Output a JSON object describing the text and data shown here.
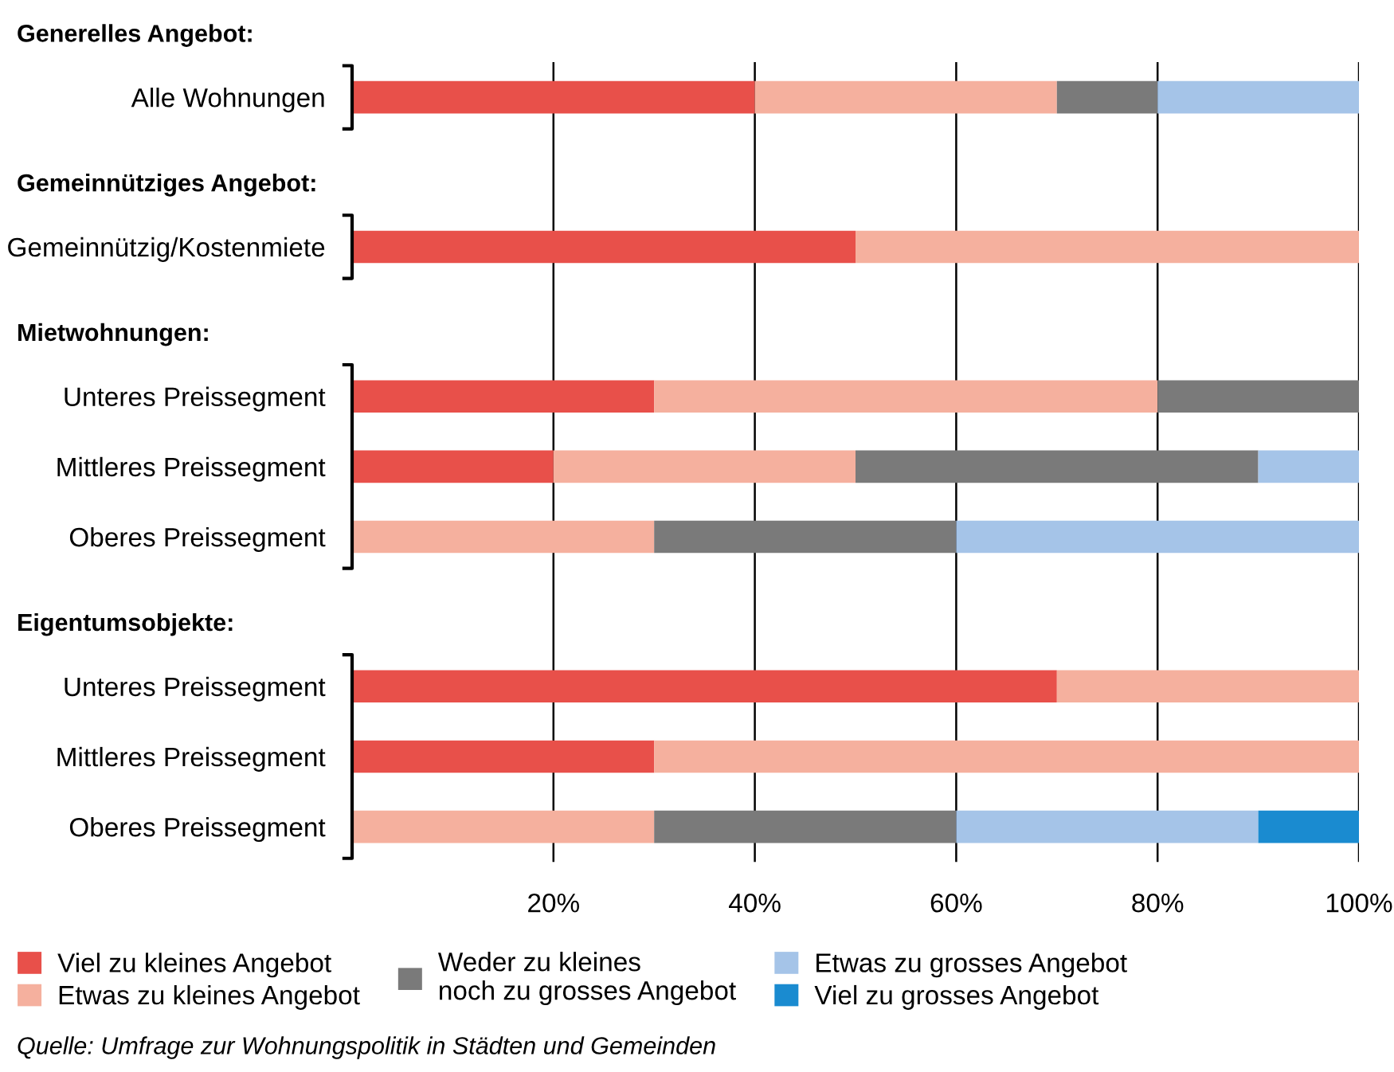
{
  "chart_data": {
    "type": "bar",
    "orientation": "horizontal",
    "stacked": true,
    "categories": [
      null,
      "Alle Wohnungen",
      null,
      "Gemeinnützig/Kostenmiete",
      null,
      "Unteres Preissegment",
      "Mittleres Preissegment",
      "Oberes Preissegment",
      null,
      "Unteres Preissegment",
      "Mittleres Preissegment",
      "Oberes Preissegment"
    ],
    "series": [
      {
        "name": "Viel zu kleines Angebot",
        "color": "#e8504a",
        "values": [
          null,
          40,
          null,
          50,
          null,
          30,
          20,
          0,
          null,
          70,
          30,
          0
        ]
      },
      {
        "name": "Etwas zu kleines Angebot",
        "color": "#f5b09e",
        "values": [
          null,
          30,
          null,
          50,
          null,
          50,
          30,
          30,
          null,
          30,
          70,
          30
        ]
      },
      {
        "name": "Weder zu kleines\nnoch zu grosses Angebot",
        "color": "#7a7a7a",
        "values": [
          null,
          10,
          null,
          0,
          null,
          20,
          40,
          30,
          null,
          0,
          0,
          30
        ]
      },
      {
        "name": "Etwas zu grosses Angebot",
        "color": "#a5c4e8",
        "values": [
          null,
          20,
          null,
          0,
          null,
          0,
          10,
          40,
          null,
          0,
          0,
          30
        ]
      },
      {
        "name": "Viel zu grosses Angebot",
        "color": "#1a8bd0",
        "values": [
          null,
          0,
          null,
          0,
          null,
          0,
          0,
          0,
          null,
          0,
          0,
          10
        ]
      }
    ],
    "xlim": [
      0,
      100
    ],
    "xticks": [
      {
        "value": 20,
        "label": "20%"
      },
      {
        "value": 40,
        "label": "40%"
      },
      {
        "value": 60,
        "label": "60%"
      },
      {
        "value": 80,
        "label": "80%"
      },
      {
        "value": 100,
        "label": "100%"
      }
    ],
    "grid": "x",
    "legend": "bottom",
    "annotations": [
      "Generelles Angebot:",
      "Gemeinnütziges Angebot:",
      "Mietwohnungen:",
      "Eigentumsobjekte:",
      "Quelle: Umfrage zur Wohnungspolitik in Städten und Gemeinden"
    ]
  }
}
